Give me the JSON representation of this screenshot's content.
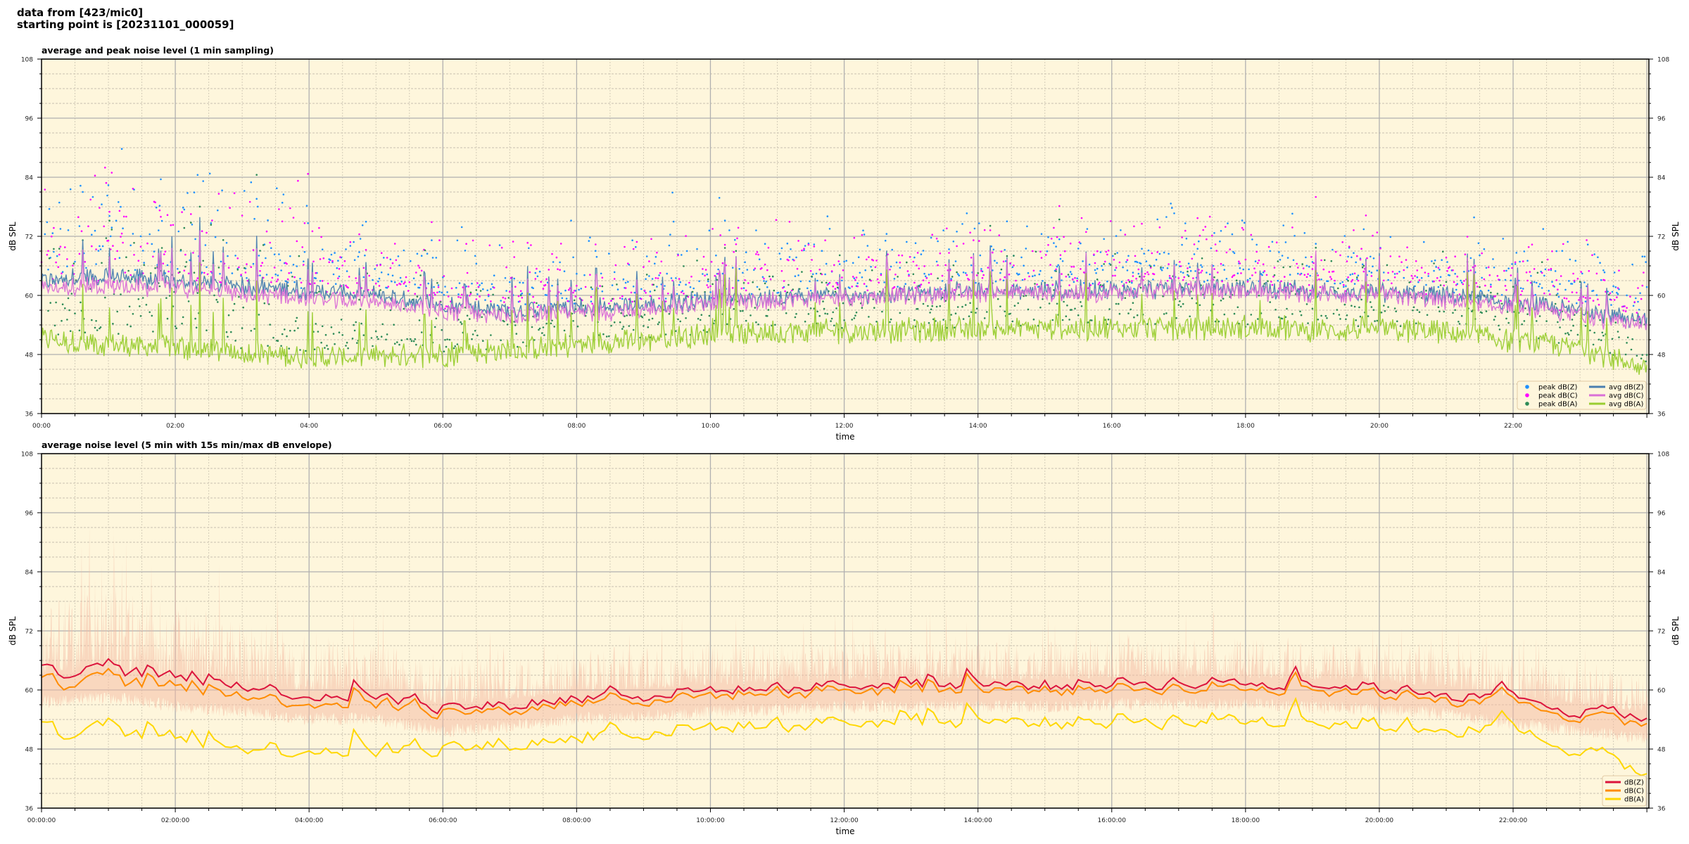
{
  "header": {
    "line1": "data from [423/mic0]",
    "line2": "starting point is [20231101_000059]"
  },
  "plot_background": "#fef6dc",
  "chart_data": [
    {
      "type": "line",
      "title": "average and peak noise level (1 min sampling)",
      "xlabel": "time",
      "ylabel": "dB SPL",
      "ylim": [
        36,
        108
      ],
      "xlim_hours": [
        0,
        24.03
      ],
      "y_ticks": [
        36,
        48,
        60,
        72,
        84,
        96,
        108
      ],
      "x_tick_labels": [
        "00:00",
        "02:00",
        "04:00",
        "06:00",
        "08:00",
        "10:00",
        "12:00",
        "14:00",
        "16:00",
        "18:00",
        "20:00",
        "22:00"
      ],
      "grid": true,
      "legend_placement": "lower-right",
      "sampling": "1 min",
      "hours": [
        0,
        1,
        2,
        3,
        4,
        5,
        6,
        7,
        8,
        9,
        10,
        11,
        12,
        13,
        14,
        15,
        16,
        17,
        18,
        19,
        20,
        21,
        22,
        23,
        24
      ],
      "series": [
        {
          "name": "peak dB(Z)",
          "kind": "scatter",
          "color": "#1e90ff",
          "offset_from": "avg dB(Z)"
        },
        {
          "name": "peak dB(C)",
          "kind": "scatter",
          "color": "#ff00ff",
          "offset_from": "avg dB(C)"
        },
        {
          "name": "peak dB(A)",
          "kind": "scatter",
          "color": "#2e8b57",
          "offset_from": "avg dB(A)"
        },
        {
          "name": "avg dB(Z)",
          "kind": "line",
          "color": "#4a7fb0",
          "values": [
            63,
            64,
            63,
            62,
            61,
            60,
            58,
            57,
            57.5,
            58,
            59,
            59.5,
            60,
            60.5,
            61,
            61,
            61,
            61.5,
            61.5,
            61,
            60.5,
            60,
            58.5,
            57,
            55
          ]
        },
        {
          "name": "avg dB(C)",
          "kind": "line",
          "color": "#da70d6",
          "values": [
            61.5,
            62,
            61.5,
            60.5,
            59.5,
            58.5,
            57,
            56,
            56.5,
            57,
            58.5,
            59,
            59.5,
            60,
            60.5,
            60.5,
            60.5,
            61,
            61,
            60.5,
            60,
            59,
            57.5,
            56,
            54
          ]
        },
        {
          "name": "avg dB(A)",
          "kind": "line",
          "color": "#9acd32",
          "values": [
            51,
            50,
            49.5,
            48.5,
            47.5,
            47.5,
            48,
            49,
            50,
            51,
            52,
            52.5,
            53,
            53,
            53,
            53.5,
            53.5,
            53.5,
            53.5,
            53,
            53,
            52.5,
            51,
            49.5,
            45
          ]
        }
      ]
    },
    {
      "type": "line",
      "title": "average noise level (5 min with 15s min/max dB envelope)",
      "xlabel": "time",
      "ylabel": "dB SPL",
      "ylim": [
        36,
        108
      ],
      "xlim_hours": [
        0,
        24.03
      ],
      "y_ticks": [
        36,
        48,
        60,
        72,
        84,
        96,
        108
      ],
      "x_tick_labels": [
        "00:00:00",
        "02:00:00",
        "04:00:00",
        "06:00:00",
        "08:00:00",
        "10:00:00",
        "12:00:00",
        "14:00:00",
        "16:00:00",
        "18:00:00",
        "20:00:00",
        "22:00:00"
      ],
      "grid": true,
      "legend_placement": "lower-right",
      "hours": [
        0,
        1,
        2,
        3,
        4,
        5,
        6,
        7,
        8,
        9,
        10,
        11,
        12,
        13,
        14,
        15,
        16,
        17,
        18,
        19,
        20,
        21,
        22,
        23,
        24
      ],
      "envelope": {
        "color": "#f4b8a0",
        "max_above_avg": [
          16,
          17,
          16,
          14,
          12,
          10,
          9,
          9,
          9,
          9,
          9,
          8,
          8,
          8,
          8,
          8,
          8,
          8,
          8,
          8,
          8,
          8,
          8,
          8,
          8
        ],
        "min_below_avg": [
          4,
          4,
          4,
          4,
          4,
          4,
          4,
          4,
          4,
          4,
          4,
          4,
          4,
          4,
          4,
          4,
          4,
          4,
          4,
          4,
          4,
          4,
          4,
          4,
          4
        ]
      },
      "series": [
        {
          "name": "dB(Z)",
          "color": "#dc143c",
          "values": [
            63,
            64,
            62,
            61,
            59,
            59,
            56,
            57,
            58.5,
            59,
            60,
            60.5,
            61,
            61,
            61,
            61,
            61.5,
            61.5,
            61.5,
            61,
            60.5,
            59.5,
            57.5,
            56,
            54.5
          ]
        },
        {
          "name": "dB(C)",
          "color": "#ff8c00",
          "values": [
            61,
            62,
            60,
            59,
            57.5,
            57.5,
            55,
            56,
            57.5,
            58,
            59,
            59.5,
            60,
            60,
            60,
            60,
            60.5,
            60.5,
            60.5,
            60,
            59.5,
            58.5,
            56.5,
            55,
            53.5
          ]
        },
        {
          "name": "dB(A)",
          "color": "#ffd700",
          "values": [
            51,
            51.5,
            49.5,
            48.5,
            48,
            48,
            47.5,
            49,
            50.5,
            51.5,
            52.5,
            53,
            53.5,
            53.5,
            53.5,
            53.5,
            54,
            54,
            54,
            53.5,
            53,
            52.5,
            50.5,
            48.5,
            43
          ]
        }
      ]
    }
  ]
}
